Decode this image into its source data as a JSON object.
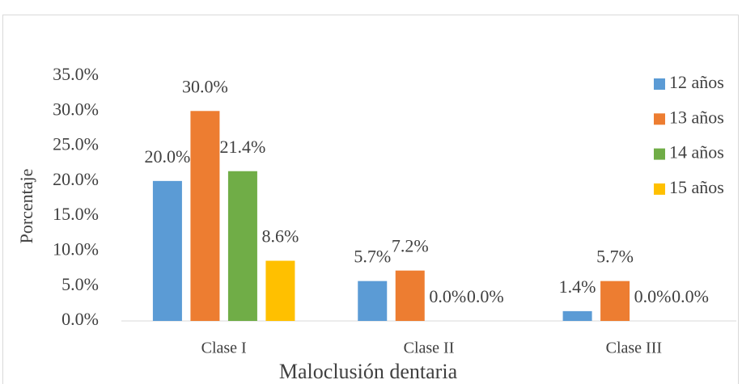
{
  "chart_data": {
    "type": "bar",
    "x_label": "Maloclusión dentaria",
    "y_label": "Porcentaje",
    "categories": [
      "Clase I",
      "Clase II",
      "Clase III"
    ],
    "series": [
      {
        "name": "12 años",
        "color": "#5b9bd5",
        "values": [
          20.0,
          5.7,
          1.4
        ],
        "value_labels": [
          "20.0%",
          "5.7%",
          "1.4%"
        ]
      },
      {
        "name": "13 años",
        "color": "#ed7d31",
        "values": [
          30.0,
          7.2,
          5.7
        ],
        "value_labels": [
          "30.0%",
          "7.2%",
          "5.7%"
        ]
      },
      {
        "name": "14 años",
        "color": "#70ad47",
        "values": [
          21.4,
          0.0,
          0.0
        ],
        "value_labels": [
          "21.4%",
          "0.0%",
          "0.0%"
        ]
      },
      {
        "name": "15 años",
        "color": "#ffc000",
        "values": [
          8.6,
          0.0,
          0.0
        ],
        "value_labels": [
          "8.6%",
          "0.0%",
          "0.0%"
        ]
      }
    ],
    "ylim": [
      0,
      35
    ],
    "yticks": [
      {
        "value": 0,
        "label": "0.0%"
      },
      {
        "value": 5,
        "label": "5.0%"
      },
      {
        "value": 10,
        "label": "10.0%"
      },
      {
        "value": 15,
        "label": "15.0%"
      },
      {
        "value": 20,
        "label": "20.0%"
      },
      {
        "value": 25,
        "label": "25.0%"
      },
      {
        "value": 30,
        "label": "30.0%"
      },
      {
        "value": 35,
        "label": "35.0%"
      }
    ],
    "legend": "right"
  }
}
